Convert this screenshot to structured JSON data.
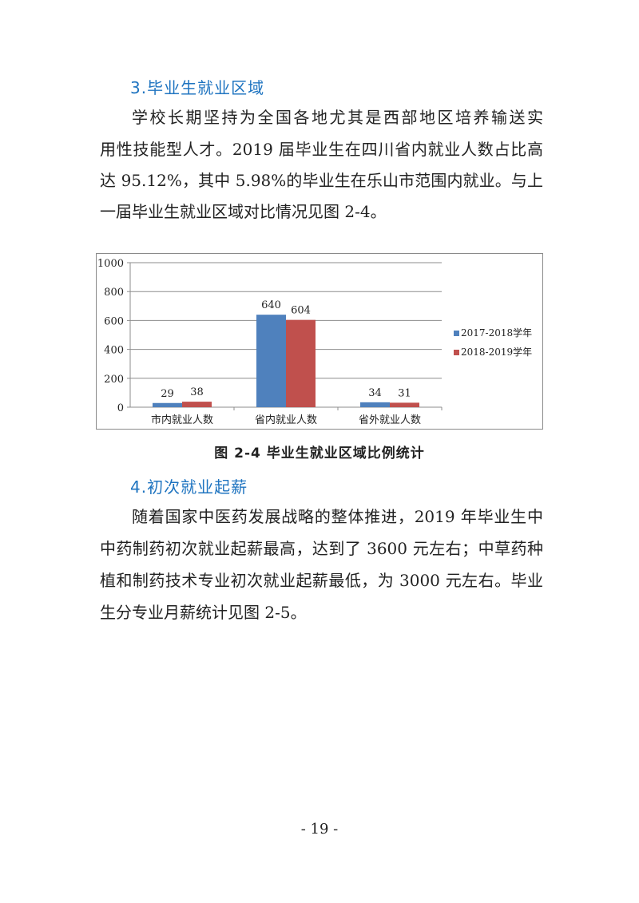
{
  "section3": {
    "heading": "3.毕业生就业区域",
    "lines": [
      "学校长期坚持为全国各地尤其是西部地区培养输送实",
      "用性技能型人才。2019 届毕业生在四川省内就业人数占比高",
      "达 95.12%，其中 5.98%的毕业生在乐山市范围内就业。与上",
      "一届毕业生就业区域对比情况见图 2-4。"
    ]
  },
  "chart_data": {
    "type": "bar",
    "categories": [
      "市内就业人数",
      "省内就业人数",
      "省外就业人数"
    ],
    "series": [
      {
        "name": "2017-2018学年",
        "values": [
          29,
          640,
          34
        ],
        "color": "#4f81bd"
      },
      {
        "name": "2018-2019学年",
        "values": [
          38,
          604,
          31
        ],
        "color": "#c0504d"
      }
    ],
    "ylim": [
      0,
      1000
    ],
    "yticks": [
      0,
      200,
      400,
      600,
      800,
      1000
    ],
    "grid": true,
    "legend": "right",
    "data_labels": true
  },
  "caption": "图 2-4   毕业生就业区域比例统计",
  "section4": {
    "heading": "4.初次就业起薪",
    "lines": [
      "随着国家中医药发展战略的整体推进，2019 年毕业生中",
      "中药制药初次就业起薪最高，达到了 3600 元左右；中草药种",
      "植和制药技术专业初次就业起薪最低，为 3000 元左右。毕业",
      "生分专业月薪统计见图 2-5。"
    ]
  },
  "page_number": "- 19 -"
}
